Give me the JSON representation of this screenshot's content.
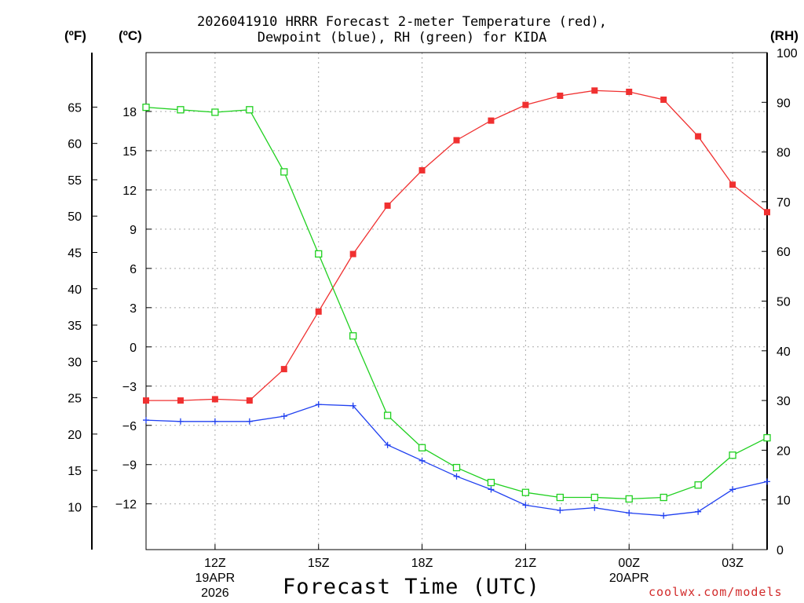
{
  "chart_data": {
    "type": "line",
    "title_line1": "2026041910 HRRR Forecast 2-meter Temperature (red),",
    "title_line2": "Dewpoint (blue), RH (green) for KIDA",
    "xlabel": "Forecast Time (UTC)",
    "unit_f": "(ºF)",
    "unit_c": "(ºC)",
    "unit_rh": "(RH)",
    "watermark": "coolwx.com/models",
    "x_hours": [
      10,
      11,
      12,
      13,
      14,
      15,
      16,
      17,
      18,
      19,
      20,
      21,
      22,
      23,
      24,
      25,
      26,
      27,
      28
    ],
    "x_range": [
      10,
      28
    ],
    "celsius_range": [
      -15.5,
      22.5
    ],
    "rh_range": [
      0,
      100
    ],
    "x_ticks": [
      {
        "hour": 12,
        "label": "12Z"
      },
      {
        "hour": 15,
        "label": "15Z"
      },
      {
        "hour": 18,
        "label": "18Z"
      },
      {
        "hour": 21,
        "label": "21Z"
      },
      {
        "hour": 24,
        "label": "00Z"
      },
      {
        "hour": 27,
        "label": "03Z"
      }
    ],
    "date_labels": [
      {
        "hour": 12,
        "line1": "19APR",
        "line2": "2026"
      },
      {
        "hour": 24,
        "line1": "20APR",
        "line2": ""
      }
    ],
    "celsius_ticks": [
      -12,
      -9,
      -6,
      -3,
      0,
      3,
      6,
      9,
      12,
      15,
      18
    ],
    "fahrenheit_ticks": [
      10,
      15,
      20,
      25,
      30,
      35,
      40,
      45,
      50,
      55,
      60,
      65
    ],
    "rh_ticks": [
      0,
      10,
      20,
      30,
      40,
      50,
      60,
      70,
      80,
      90,
      100
    ],
    "series": [
      {
        "name": "Temperature",
        "unit": "C",
        "color": "#f03030",
        "marker": "filled-square",
        "values": [
          -4.1,
          -4.1,
          -4.0,
          -4.1,
          -1.7,
          2.7,
          7.1,
          10.8,
          13.5,
          15.8,
          17.3,
          18.5,
          19.2,
          19.6,
          19.5,
          18.9,
          16.1,
          12.4,
          10.3
        ]
      },
      {
        "name": "Dewpoint",
        "unit": "C",
        "color": "#2040f0",
        "marker": "plus",
        "values": [
          -5.6,
          -5.7,
          -5.7,
          -5.7,
          -5.3,
          -4.4,
          -4.5,
          -7.5,
          -8.7,
          -9.9,
          -10.9,
          -12.1,
          -12.5,
          -12.3,
          -12.7,
          -12.9,
          -12.6,
          -10.9,
          -10.3
        ]
      },
      {
        "name": "Relative Humidity",
        "unit": "%",
        "color": "#20d020",
        "marker": "open-square",
        "values": [
          89,
          88.5,
          88,
          88.5,
          76,
          59.5,
          43,
          27,
          20.5,
          16.5,
          13.5,
          11.5,
          10.5,
          10.5,
          10.2,
          10.5,
          13,
          19,
          22.5
        ]
      }
    ]
  }
}
